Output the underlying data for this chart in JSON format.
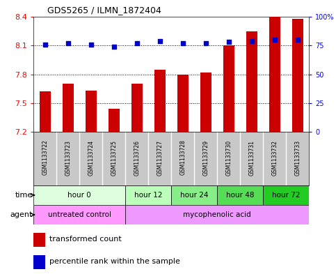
{
  "title": "GDS5265 / ILMN_1872404",
  "samples": [
    "GSM1133722",
    "GSM1133723",
    "GSM1133724",
    "GSM1133725",
    "GSM1133726",
    "GSM1133727",
    "GSM1133728",
    "GSM1133729",
    "GSM1133730",
    "GSM1133731",
    "GSM1133732",
    "GSM1133733"
  ],
  "bar_values": [
    7.62,
    7.7,
    7.63,
    7.44,
    7.7,
    7.85,
    7.8,
    7.82,
    8.1,
    8.25,
    8.4,
    8.38
  ],
  "bar_color": "#cc0000",
  "dot_values": [
    76,
    77,
    76,
    74,
    77,
    79,
    77,
    77,
    78,
    79,
    80,
    80
  ],
  "dot_color": "#0000cc",
  "ylim": [
    7.2,
    8.4
  ],
  "yticks": [
    7.2,
    7.5,
    7.8,
    8.1,
    8.4
  ],
  "y2lim": [
    0,
    100
  ],
  "y2ticks": [
    0,
    25,
    50,
    75,
    100
  ],
  "y2ticklabels": [
    "0",
    "25",
    "50",
    "75",
    "100%"
  ],
  "grid_lines": [
    7.5,
    7.8,
    8.1
  ],
  "time_groups": [
    {
      "label": "hour 0",
      "start": 0,
      "end": 3,
      "color": "#ddffdd"
    },
    {
      "label": "hour 12",
      "start": 4,
      "end": 5,
      "color": "#bbffbb"
    },
    {
      "label": "hour 24",
      "start": 6,
      "end": 7,
      "color": "#88ee88"
    },
    {
      "label": "hour 48",
      "start": 8,
      "end": 9,
      "color": "#55dd55"
    },
    {
      "label": "hour 72",
      "start": 10,
      "end": 11,
      "color": "#22cc22"
    }
  ],
  "agent_groups": [
    {
      "label": "untreated control",
      "start": 0,
      "end": 3,
      "color": "#ff99ff"
    },
    {
      "label": "mycophenolic acid",
      "start": 4,
      "end": 11,
      "color": "#ee99ff"
    }
  ],
  "legend_bar_label": "transformed count",
  "legend_dot_label": "percentile rank within the sample",
  "time_label": "time",
  "agent_label": "agent",
  "plot_bg": "#ffffff",
  "sample_bg": "#c8c8c8",
  "border_color": "#000000"
}
